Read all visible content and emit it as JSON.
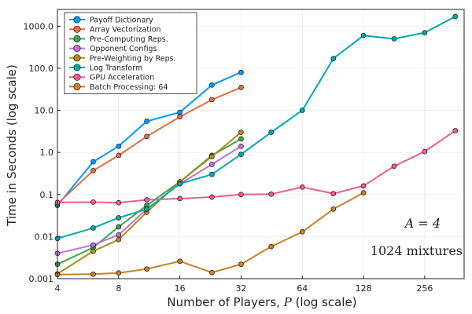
{
  "chart_data": {
    "type": "line",
    "title": "",
    "xlabel_main": "Number of Players, ",
    "xlabel_var": "P",
    "xlabel_suffix": " (log scale)",
    "ylabel": "Time in Seconds (log scale)",
    "xscale": "log2",
    "yscale": "log10",
    "xlim": [
      4,
      400
    ],
    "ylim": [
      0.001,
      2500
    ],
    "xticks": [
      4,
      8,
      16,
      32,
      64,
      128,
      256
    ],
    "xtick_labels": [
      "4",
      "8",
      "16",
      "32",
      "64",
      "128",
      "256"
    ],
    "yticks": [
      0.001,
      0.01,
      0.1,
      1,
      10,
      100,
      1000
    ],
    "ytick_labels": [
      "0.001",
      "0.01",
      "0.1",
      "1.0",
      "10.0",
      "100.0",
      "1000.0"
    ],
    "grid": true,
    "legend_position": "top-left",
    "annotations": [
      "A = 4",
      "1024 mixtures"
    ],
    "series": [
      {
        "name": "Payoff Dictionary",
        "color": "#009AFA",
        "x": [
          4,
          6,
          8,
          11,
          16,
          23,
          32
        ],
        "y": [
          0.055,
          0.6,
          1.4,
          5.5,
          9,
          40,
          80
        ]
      },
      {
        "name": "Array Vectorization",
        "color": "#E36F47",
        "x": [
          4,
          6,
          8,
          11,
          16,
          23,
          32
        ],
        "y": [
          0.06,
          0.37,
          0.85,
          2.4,
          7,
          18,
          35
        ]
      },
      {
        "name": "Pre-Computing Reps.",
        "color": "#3EA44E",
        "x": [
          4,
          6,
          8,
          11,
          16,
          23,
          32
        ],
        "y": [
          0.0022,
          0.0055,
          0.017,
          0.055,
          0.2,
          0.85,
          2.1
        ]
      },
      {
        "name": "Opponent Configs",
        "color": "#C271D2",
        "x": [
          4,
          6,
          8,
          11,
          16,
          23,
          32
        ],
        "y": [
          0.004,
          0.0063,
          0.011,
          0.045,
          0.18,
          0.52,
          1.4
        ]
      },
      {
        "name": "Pre-Weighting by Reps.",
        "color": "#AC8D18",
        "x": [
          4,
          6,
          8,
          11,
          16,
          23,
          32
        ],
        "y": [
          0.0013,
          0.0045,
          0.0085,
          0.038,
          0.2,
          0.8,
          3.0
        ]
      },
      {
        "name": "Log Transform",
        "color": "#00A9AD",
        "x": [
          4,
          6,
          8,
          11,
          16,
          23,
          32,
          45,
          64,
          91,
          128,
          181,
          256,
          362
        ],
        "y": [
          0.009,
          0.016,
          0.028,
          0.045,
          0.18,
          0.3,
          0.9,
          3.0,
          10,
          170,
          600,
          500,
          700,
          1700
        ]
      },
      {
        "name": "GPU Acceleration",
        "color": "#ED5D92",
        "x": [
          4,
          6,
          8,
          11,
          16,
          23,
          32,
          45,
          64,
          91,
          128,
          181,
          256,
          362
        ],
        "y": [
          0.065,
          0.066,
          0.064,
          0.075,
          0.08,
          0.087,
          0.1,
          0.102,
          0.15,
          0.105,
          0.16,
          0.47,
          1.05,
          3.3
        ]
      },
      {
        "name": "Batch Processing: 64",
        "color": "#C68225",
        "x": [
          4,
          6,
          8,
          11,
          16,
          23,
          32,
          45,
          64,
          91,
          128
        ],
        "y": [
          0.00125,
          0.00128,
          0.00137,
          0.0017,
          0.0026,
          0.0014,
          0.0022,
          0.0058,
          0.013,
          0.045,
          0.11
        ]
      }
    ]
  }
}
